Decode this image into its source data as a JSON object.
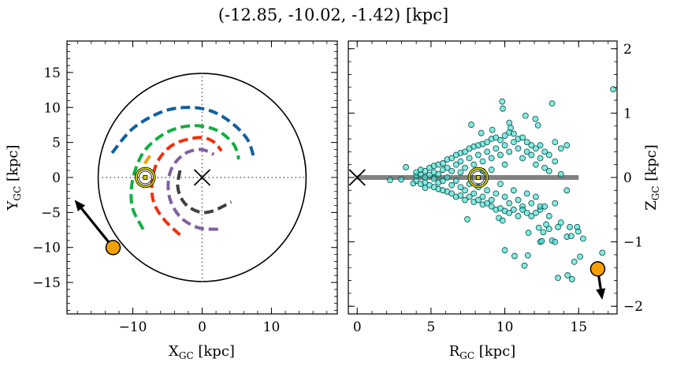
{
  "title": "(-12.85, -10.02, -1.42) [kpc]",
  "chart_data": [
    {
      "type": "line",
      "panel": "left",
      "xlabel": {
        "main": "X",
        "sub": "GC",
        "unit": " [kpc]"
      },
      "ylabel": {
        "main": "Y",
        "sub": "GC",
        "unit": " [kpc]"
      },
      "xlim": [
        -19.5,
        19.5
      ],
      "ylim": [
        -19.5,
        19.5
      ],
      "xticks": [
        -10,
        0,
        10
      ],
      "xtick_labels": [
        "−10",
        "0",
        "10"
      ],
      "yticks": [
        -15,
        -10,
        -5,
        0,
        5,
        10,
        15
      ],
      "ytick_labels": [
        "−15",
        "−10",
        "−5",
        "0",
        "5",
        "10",
        "15"
      ],
      "x_minor_step": 2,
      "y_minor_step": 1,
      "grid": false,
      "boundary_circle_radius": 15,
      "center_marker": {
        "x": 0,
        "y": 0,
        "marker": "x"
      },
      "sun_marker": {
        "x": -8.2,
        "y": 0,
        "color": "#c8c800"
      },
      "object": {
        "x": -12.85,
        "y": -10.02,
        "color": "#f5a000",
        "arrow_to": [
          -18.4,
          -3.2
        ]
      },
      "arcs": [
        {
          "color": "#1060a0",
          "points": [
            [
              -13,
              3.5
            ],
            [
              -10,
              7
            ],
            [
              -6,
              9.3
            ],
            [
              -2.5,
              10
            ],
            [
              1,
              9.6
            ],
            [
              4,
              8
            ],
            [
              6.5,
              5.5
            ],
            [
              7.5,
              2.7
            ]
          ]
        },
        {
          "color": "#10b040",
          "points": [
            [
              -8.5,
              -7.4
            ],
            [
              -10,
              -4.5
            ],
            [
              -10.2,
              -1.5
            ],
            [
              -9.5,
              1.5
            ],
            [
              -8,
              4.2
            ],
            [
              -5,
              6.5
            ],
            [
              -1.5,
              7.4
            ],
            [
              2,
              6.8
            ],
            [
              4.5,
              4.8
            ],
            [
              5.3,
              2.6
            ]
          ]
        },
        {
          "color": "#f5a000",
          "points": [
            [
              -8.3,
              2.0
            ],
            [
              -7.4,
              3.3
            ]
          ]
        },
        {
          "color": "#f03010",
          "points": [
            [
              -3.2,
              -8.2
            ],
            [
              -5.5,
              -6
            ],
            [
              -7,
              -3.5
            ],
            [
              -7.2,
              -0.5
            ],
            [
              -6.3,
              2.5
            ],
            [
              -4,
              4.8
            ],
            [
              -0.5,
              5.7
            ],
            [
              1.5,
              5.2
            ],
            [
              2.8,
              3.8
            ]
          ]
        },
        {
          "color": "#8060a0",
          "points": [
            [
              2.3,
              -7.4
            ],
            [
              -0.5,
              -7.2
            ],
            [
              -3,
              -5.8
            ],
            [
              -4.5,
              -3.5
            ],
            [
              -4.9,
              -1
            ],
            [
              -4.3,
              1.5
            ],
            [
              -2.5,
              3.4
            ],
            [
              -0.2,
              4
            ],
            [
              1.7,
              3.3
            ]
          ]
        },
        {
          "color": "#404040",
          "points": [
            [
              -3.2,
              1
            ],
            [
              -3.5,
              -1.5
            ],
            [
              -2.5,
              -3.7
            ],
            [
              -0.5,
              -4.9
            ],
            [
              1.5,
              -4.8
            ],
            [
              4.2,
              -3.5
            ]
          ]
        }
      ]
    },
    {
      "type": "scatter",
      "panel": "right",
      "xlabel": {
        "main": "R",
        "sub": "GC",
        "unit": " [kpc]"
      },
      "ylabel": {
        "main": "Z",
        "sub": "GC",
        "unit": " [kpc]"
      },
      "xlim": [
        -0.6,
        17.6
      ],
      "ylim": [
        -2.12,
        2.12
      ],
      "xticks": [
        0,
        5,
        10,
        15
      ],
      "xtick_labels": [
        "0",
        "5",
        "10",
        "15"
      ],
      "yticks": [
        -2,
        -1,
        0,
        1,
        2
      ],
      "ytick_labels": [
        "−2",
        "−1",
        "0",
        "1",
        "2"
      ],
      "x_minor_step": 1,
      "y_minor_step": 0.2,
      "y_axis_side": "right",
      "grid": false,
      "point_color": "#40e0d0",
      "disk_band": {
        "r_from": 0,
        "r_to": 15,
        "z": 0,
        "color": "#808080"
      },
      "center_marker": {
        "x": 0,
        "y": 0,
        "marker": "x"
      },
      "sun_marker": {
        "x": 8.2,
        "y": 0,
        "color": "#c8c800"
      },
      "object": {
        "x": 16.29,
        "y": -1.42,
        "color": "#f5a000",
        "arrow_to": [
          16.6,
          -1.9
        ]
      },
      "points": [
        [
          17.34,
          1.37
        ],
        [
          9.82,
          1.18
        ],
        [
          9.86,
          1.07
        ],
        [
          13.2,
          1.15
        ],
        [
          11.4,
          0.96
        ],
        [
          12.07,
          0.91
        ],
        [
          7.73,
          0.82
        ],
        [
          8.4,
          0.69
        ],
        [
          9.15,
          0.74
        ],
        [
          10.3,
          0.85
        ],
        [
          10.4,
          0.77
        ],
        [
          12.25,
          0.81
        ],
        [
          3.3,
          0.16
        ],
        [
          2.23,
          -0.04
        ],
        [
          2.98,
          -0.03
        ],
        [
          3.8,
          -0.09
        ],
        [
          4.6,
          -0.16
        ],
        [
          7.46,
          -0.65
        ],
        [
          9.6,
          -0.63
        ],
        [
          9.85,
          -0.67
        ],
        [
          11.6,
          -0.86
        ],
        [
          12.3,
          -0.78
        ],
        [
          12.8,
          -0.73
        ],
        [
          12.6,
          -0.85
        ],
        [
          13.0,
          -0.8
        ],
        [
          13.6,
          -0.77
        ],
        [
          14.4,
          -0.77
        ],
        [
          14.9,
          -0.77
        ],
        [
          14.97,
          -0.84
        ],
        [
          14.2,
          -0.92
        ],
        [
          14.5,
          -0.91
        ],
        [
          15.3,
          -0.95
        ],
        [
          12.4,
          -1.0
        ],
        [
          12.5,
          -0.99
        ],
        [
          13.2,
          -0.98
        ],
        [
          13.4,
          -1.0
        ],
        [
          10.0,
          -1.13
        ],
        [
          10.66,
          -1.22
        ],
        [
          11.56,
          -1.21
        ],
        [
          11.33,
          -1.37
        ],
        [
          14.7,
          -1.31
        ],
        [
          15.1,
          -1.23
        ],
        [
          16.6,
          -1.17
        ],
        [
          13.6,
          -1.56
        ],
        [
          14.25,
          -1.52
        ],
        [
          14.55,
          -1.58
        ],
        [
          4.0,
          0.03
        ],
        [
          4.0,
          -0.05
        ],
        [
          4.0,
          0.08
        ],
        [
          4.3,
          -0.1
        ],
        [
          4.3,
          0.05
        ],
        [
          4.3,
          0.12
        ],
        [
          4.6,
          0.1
        ],
        [
          4.6,
          -0.08
        ],
        [
          4.6,
          0.0
        ],
        [
          4.9,
          0.15
        ],
        [
          4.9,
          -0.12
        ],
        [
          4.9,
          0.04
        ],
        [
          5.2,
          0.18
        ],
        [
          5.2,
          -0.15
        ],
        [
          5.2,
          -0.02
        ],
        [
          5.2,
          0.08
        ],
        [
          5.5,
          0.2
        ],
        [
          5.5,
          -0.18
        ],
        [
          5.5,
          0.05
        ],
        [
          5.5,
          -0.08
        ],
        [
          5.8,
          0.22
        ],
        [
          5.8,
          -0.2
        ],
        [
          5.8,
          0.12
        ],
        [
          5.8,
          -0.05
        ],
        [
          6.1,
          0.28
        ],
        [
          6.1,
          -0.22
        ],
        [
          6.1,
          0.0
        ],
        [
          6.1,
          0.15
        ],
        [
          6.4,
          0.3
        ],
        [
          6.4,
          -0.25
        ],
        [
          6.4,
          0.1
        ],
        [
          6.4,
          -0.12
        ],
        [
          6.7,
          0.35
        ],
        [
          6.7,
          -0.3
        ],
        [
          6.7,
          0.2
        ],
        [
          6.7,
          -0.05
        ],
        [
          7.0,
          0.38
        ],
        [
          7.0,
          -0.28
        ],
        [
          7.0,
          0.08
        ],
        [
          7.0,
          -0.15
        ],
        [
          7.0,
          0.25
        ],
        [
          7.3,
          0.4
        ],
        [
          7.3,
          -0.35
        ],
        [
          7.3,
          0.15
        ],
        [
          7.3,
          -0.2
        ],
        [
          7.6,
          0.45
        ],
        [
          7.6,
          -0.3
        ],
        [
          7.6,
          0.3
        ],
        [
          7.6,
          -0.1
        ],
        [
          7.9,
          0.48
        ],
        [
          7.9,
          -0.38
        ],
        [
          7.9,
          0.2
        ],
        [
          7.9,
          -0.25
        ],
        [
          8.2,
          0.5
        ],
        [
          8.2,
          -0.35
        ],
        [
          8.2,
          0.35
        ],
        [
          8.2,
          -0.15
        ],
        [
          8.5,
          0.52
        ],
        [
          8.5,
          -0.42
        ],
        [
          8.5,
          0.25
        ],
        [
          8.5,
          -0.3
        ],
        [
          8.5,
          0.1
        ],
        [
          8.8,
          0.55
        ],
        [
          8.8,
          -0.4
        ],
        [
          8.8,
          0.4
        ],
        [
          8.8,
          -0.2
        ],
        [
          9.1,
          0.6
        ],
        [
          9.1,
          -0.45
        ],
        [
          9.1,
          0.3
        ],
        [
          9.1,
          -0.35
        ],
        [
          9.1,
          0.12
        ],
        [
          9.4,
          0.62
        ],
        [
          9.4,
          -0.5
        ],
        [
          9.4,
          0.45
        ],
        [
          9.4,
          -0.25
        ],
        [
          9.7,
          0.58
        ],
        [
          9.7,
          -0.48
        ],
        [
          9.7,
          0.35
        ],
        [
          9.7,
          -0.1
        ],
        [
          10.0,
          0.65
        ],
        [
          10.0,
          -0.52
        ],
        [
          10.0,
          0.5
        ],
        [
          10.0,
          -0.3
        ],
        [
          10.0,
          0.2
        ],
        [
          10.3,
          0.7
        ],
        [
          10.3,
          -0.55
        ],
        [
          10.3,
          0.4
        ],
        [
          10.3,
          -0.4
        ],
        [
          10.6,
          0.68
        ],
        [
          10.6,
          -0.5
        ],
        [
          10.6,
          0.55
        ],
        [
          10.6,
          -0.2
        ],
        [
          10.9,
          0.6
        ],
        [
          10.9,
          -0.6
        ],
        [
          10.9,
          0.45
        ],
        [
          10.9,
          -0.35
        ],
        [
          11.2,
          0.62
        ],
        [
          11.2,
          -0.45
        ],
        [
          11.2,
          0.3
        ],
        [
          11.2,
          -0.5
        ],
        [
          11.5,
          0.55
        ],
        [
          11.5,
          -0.55
        ],
        [
          11.5,
          0.4
        ],
        [
          11.5,
          -0.25
        ],
        [
          11.8,
          0.5
        ],
        [
          11.8,
          -0.6
        ],
        [
          11.8,
          0.35
        ],
        [
          11.8,
          -0.4
        ],
        [
          12.1,
          0.45
        ],
        [
          12.1,
          -0.55
        ],
        [
          12.1,
          0.2
        ],
        [
          12.1,
          -0.3
        ],
        [
          12.4,
          0.5
        ],
        [
          12.4,
          -0.5
        ],
        [
          12.4,
          0.3
        ],
        [
          12.4,
          -0.45
        ],
        [
          12.7,
          0.4
        ],
        [
          12.7,
          -0.45
        ],
        [
          12.7,
          0.15
        ],
        [
          13.0,
          0.35
        ],
        [
          13.0,
          -0.6
        ],
        [
          13.0,
          0.1
        ],
        [
          13.4,
          0.55
        ],
        [
          13.4,
          -0.4
        ],
        [
          13.4,
          0.25
        ],
        [
          13.8,
          0.45
        ],
        [
          13.8,
          -0.7
        ],
        [
          13.8,
          0.05
        ],
        [
          14.2,
          0.5
        ],
        [
          14.2,
          -0.2
        ]
      ]
    }
  ]
}
